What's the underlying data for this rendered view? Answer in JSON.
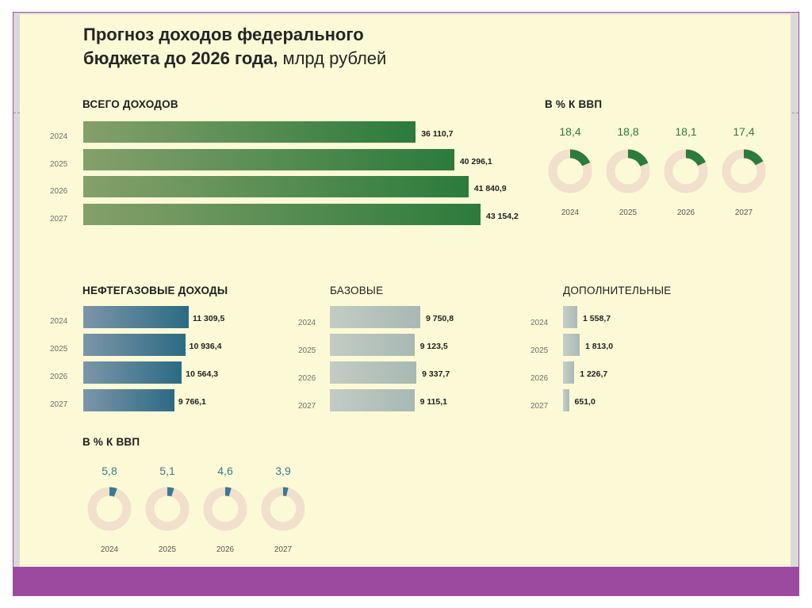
{
  "title": {
    "line1": "Прогноз доходов федерального",
    "line2_bold": "бюджета до 2026 года,",
    "line2_light": "млрд рублей"
  },
  "colors": {
    "total_bar": "#2b7b3c",
    "oil_bar": "#2b6b84",
    "ring_track": "#f0e0cc",
    "ring_green": "#2b7b3c",
    "ring_blue": "#3a7a93",
    "purple_band": "#9c4a9f"
  },
  "chart_data": [
    {
      "type": "bar",
      "title": "ВСЕГО ДОХОДОВ",
      "categories": [
        "2024",
        "2025",
        "2026",
        "2027"
      ],
      "values": [
        36110.7,
        40296.1,
        41840.9,
        43154.2
      ],
      "labels": [
        "36 110,7",
        "40 296,1",
        "41 840,9",
        "43 154,2"
      ],
      "xlim": [
        0,
        43154.2
      ]
    },
    {
      "type": "pie",
      "title": "В % К ВВП",
      "categories": [
        "2024",
        "2025",
        "2026",
        "2027"
      ],
      "values": [
        18.4,
        18.8,
        18.1,
        17.4
      ],
      "labels": [
        "18,4",
        "18,8",
        "18,1",
        "17,4"
      ]
    },
    {
      "type": "bar",
      "title": "НЕФТЕГАЗОВЫЕ ДОХОДЫ",
      "categories": [
        "2024",
        "2025",
        "2026",
        "2027"
      ],
      "values": [
        11309.5,
        10936.4,
        10564.3,
        9766.1
      ],
      "labels": [
        "11 309,5",
        "10 936,4",
        "10 564,3",
        "9 766,1"
      ],
      "xlim": [
        0,
        11309.5
      ]
    },
    {
      "type": "bar",
      "title": "БАЗОВЫЕ",
      "categories": [
        "2024",
        "2025",
        "2026",
        "2027"
      ],
      "values": [
        9750.8,
        9123.5,
        9337.7,
        9115.1
      ],
      "labels": [
        "9 750,8",
        "9 123,5",
        "9 337,7",
        "9 115,1"
      ],
      "xlim": [
        0,
        9750.8
      ]
    },
    {
      "type": "bar",
      "title": "ДОПОЛНИТЕЛЬНЫЕ",
      "categories": [
        "2024",
        "2025",
        "2026",
        "2027"
      ],
      "values": [
        1558.7,
        1813.0,
        1226.7,
        651.0
      ],
      "labels": [
        "1 558,7",
        "1 813,0",
        "1 226,7",
        "651,0"
      ],
      "xlim": [
        0,
        1813.0
      ]
    },
    {
      "type": "pie",
      "title": "В % К ВВП",
      "categories": [
        "2024",
        "2025",
        "2026",
        "2027"
      ],
      "values": [
        5.8,
        5.1,
        4.6,
        3.9
      ],
      "labels": [
        "5,8",
        "5,1",
        "4,6",
        "3,9"
      ]
    }
  ]
}
